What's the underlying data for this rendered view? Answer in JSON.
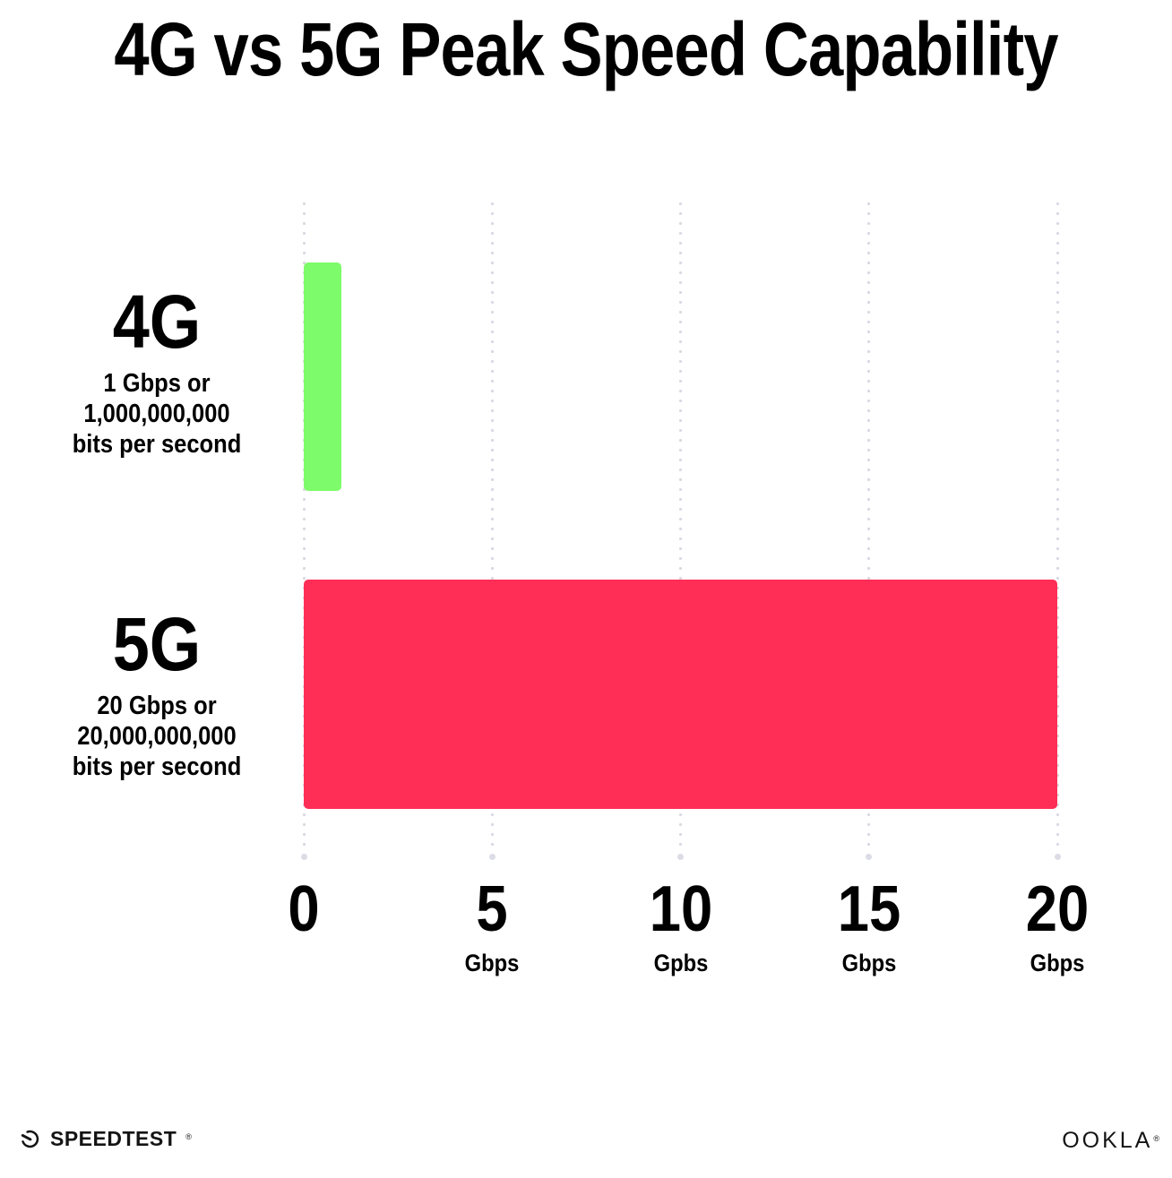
{
  "chart_data": {
    "type": "bar",
    "orientation": "horizontal",
    "title": "4G vs 5G Peak Speed Capability",
    "categories": [
      "4G",
      "5G"
    ],
    "values": [
      1,
      20
    ],
    "value_unit": "Gbps",
    "xlim": [
      0,
      20
    ],
    "x_ticks": [
      {
        "value": "0",
        "unit": ""
      },
      {
        "value": "5",
        "unit": "Gbps"
      },
      {
        "value": "10",
        "unit": "Gpbs"
      },
      {
        "value": "15",
        "unit": "Gbps"
      },
      {
        "value": "20",
        "unit": "Gbps"
      }
    ],
    "grid": "vertical-dotted",
    "legend": "none",
    "bar_colors": [
      "#7DFB6A",
      "#FE2E56"
    ],
    "bar_labels": [
      {
        "name": "4G",
        "desc_lines": [
          "1 Gbps or",
          "1,000,000,000",
          "bits per second"
        ]
      },
      {
        "name": "5G",
        "desc_lines": [
          "20 Gbps or",
          "20,000,000,000",
          "bits per second"
        ]
      }
    ]
  },
  "colors": {
    "bar_4g": "#7DFB6A",
    "bar_5g": "#FE2E56",
    "gridline_dots": "#D9D9E3",
    "text": "#000000"
  },
  "footer": {
    "speedtest_label": "SPEEDTEST",
    "ookla_label": "OOKLA",
    "trademark": "®"
  }
}
